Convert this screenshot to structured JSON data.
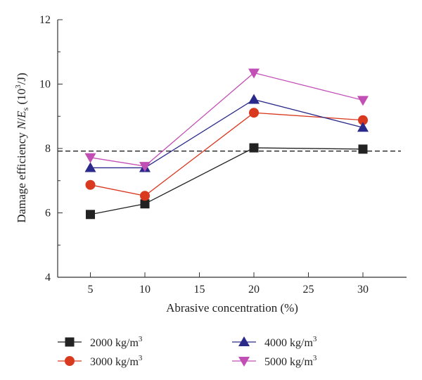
{
  "chart_data": {
    "type": "line",
    "title": "",
    "xlabel": "Abrasive concentration (%)",
    "ylabel": "Damage efficiency N/E_s (10^3/J)",
    "xlim": [
      2,
      34
    ],
    "ylim": [
      4,
      12
    ],
    "x": [
      5,
      10,
      20,
      30
    ],
    "x_ticks": [
      "5",
      "10",
      "15",
      "20",
      "25",
      "30"
    ],
    "y_ticks": [
      "4",
      "6",
      "8",
      "10",
      "12"
    ],
    "legend_position": "bottom",
    "reference_line": {
      "y": 7.92,
      "style": "dashed"
    },
    "series": [
      {
        "name": "2000 kg/m3",
        "marker": "square",
        "color": "#222222",
        "values": [
          5.95,
          6.28,
          8.02,
          7.98
        ]
      },
      {
        "name": "3000 kg/m3",
        "marker": "circle",
        "color": "#d9391f",
        "values": [
          6.87,
          6.53,
          9.11,
          8.88
        ]
      },
      {
        "name": "4000 kg/m3",
        "marker": "triangle-up",
        "color": "#2a2a8a",
        "values": [
          7.4,
          7.4,
          9.52,
          8.65
        ]
      },
      {
        "name": "5000 kg/m3",
        "marker": "triangle-down",
        "color": "#c24fb5",
        "values": [
          7.72,
          7.45,
          10.35,
          9.5
        ]
      }
    ]
  }
}
